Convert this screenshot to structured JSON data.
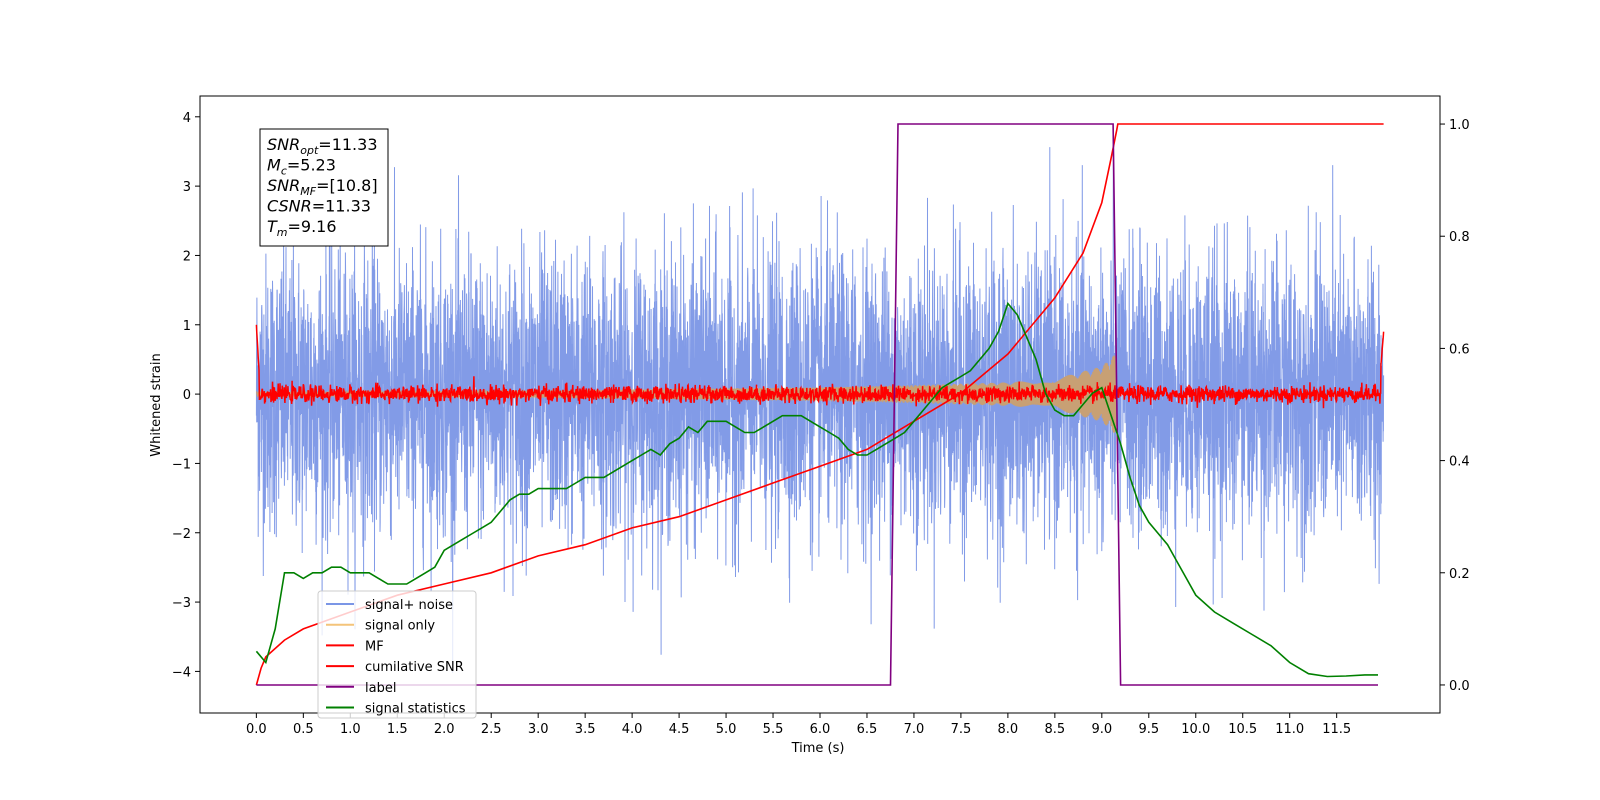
{
  "chart_data": {
    "type": "line",
    "xlabel": "Time (s)",
    "ylabel": "Whitened strain",
    "xlim": [
      -0.6,
      12.6
    ],
    "ylim": [
      -4.6,
      4.3
    ],
    "y2lim": [
      -0.05,
      1.05
    ],
    "xticks": [
      "0.0",
      "0.5",
      "1.0",
      "1.5",
      "2.0",
      "2.5",
      "3.0",
      "3.5",
      "4.0",
      "4.5",
      "5.0",
      "5.5",
      "6.0",
      "6.5",
      "7.0",
      "7.5",
      "8.0",
      "8.5",
      "9.0",
      "9.5",
      "10.0",
      "10.5",
      "11.0",
      "11.5"
    ],
    "yticks": [
      "4",
      "3",
      "2",
      "1",
      "0",
      "−1",
      "−2",
      "−3",
      "−4"
    ],
    "y2ticks": [
      "1.0",
      "0.8",
      "0.6",
      "0.4",
      "0.2",
      "0.0"
    ],
    "annotation": [
      {
        "base": "SNR",
        "sub": "opt",
        "rest": "=11.33"
      },
      {
        "base": "M",
        "sub": "c",
        "rest": "=5.23"
      },
      {
        "base": "SNR",
        "sub": "MF",
        "rest": "=[10.8]"
      },
      {
        "base": "CSNR",
        "sub": "",
        "rest": "=11.33"
      },
      {
        "base": "T",
        "sub": "m",
        "rest": "=9.16"
      }
    ],
    "legend": {
      "placement": "lower-left",
      "entries": [
        {
          "label": "signal+ noise",
          "color": "#7b96e6"
        },
        {
          "label": "signal only",
          "color": "#f4c47a"
        },
        {
          "label": "MF",
          "color": "#ff0000"
        },
        {
          "label": "cumilative SNR",
          "color": "#ff0000"
        },
        {
          "label": "label",
          "color": "#800080"
        },
        {
          "label": "signal statistics",
          "color": "#008000"
        }
      ]
    },
    "series": [
      {
        "name": "signal+ noise",
        "axis": "left",
        "style": "noise",
        "color": "#7b96e6",
        "x_range": [
          0.0,
          12.0
        ],
        "std": 1.0,
        "max": 3.88,
        "min": -4.1
      },
      {
        "name": "signal only",
        "axis": "left",
        "style": "chirp-envelope",
        "color": "#c8a074",
        "x_range": [
          0.0,
          9.16
        ],
        "amplitude_points": {
          "x": [
            0.0,
            3.0,
            6.0,
            7.0,
            8.0,
            8.5,
            9.0,
            9.16
          ],
          "y": [
            0.03,
            0.05,
            0.1,
            0.13,
            0.17,
            0.22,
            0.4,
            0.6
          ]
        }
      },
      {
        "name": "MF",
        "axis": "left",
        "style": "noise",
        "color": "#ff0000",
        "x_range": [
          0.0,
          12.0
        ],
        "std": 0.06,
        "edge_x": [
          0.0,
          0.03,
          11.97,
          12.0
        ],
        "edge_y": [
          1.0,
          0.3,
          0.4,
          0.9
        ]
      },
      {
        "name": "cumilative SNR",
        "axis": "right",
        "color": "#ff0000",
        "x": [
          0.0,
          0.05,
          0.1,
          0.3,
          0.5,
          1.0,
          1.5,
          2.0,
          2.5,
          3.0,
          3.5,
          4.0,
          4.5,
          5.0,
          5.5,
          6.0,
          6.5,
          7.0,
          7.5,
          8.0,
          8.5,
          8.8,
          9.0,
          9.1,
          9.16,
          9.17,
          12.0
        ],
        "y": [
          0.0,
          0.03,
          0.05,
          0.08,
          0.1,
          0.13,
          0.16,
          0.18,
          0.2,
          0.23,
          0.25,
          0.28,
          0.3,
          0.33,
          0.36,
          0.39,
          0.42,
          0.47,
          0.52,
          0.59,
          0.69,
          0.77,
          0.86,
          0.94,
          0.99,
          1.0,
          1.0
        ]
      },
      {
        "name": "label",
        "axis": "right",
        "color": "#800080",
        "x": [
          0.0,
          6.75,
          6.83,
          9.12,
          9.2,
          11.94
        ],
        "y": [
          0.0,
          0.0,
          1.0,
          1.0,
          0.0,
          0.0
        ]
      },
      {
        "name": "signal statistics",
        "axis": "right",
        "color": "#008000",
        "x": [
          0.0,
          0.1,
          0.2,
          0.3,
          0.4,
          0.5,
          0.6,
          0.7,
          0.8,
          0.9,
          1.0,
          1.1,
          1.2,
          1.3,
          1.4,
          1.5,
          1.6,
          1.7,
          1.8,
          1.9,
          2.0,
          2.1,
          2.2,
          2.3,
          2.4,
          2.5,
          2.6,
          2.7,
          2.8,
          2.9,
          3.0,
          3.1,
          3.2,
          3.3,
          3.4,
          3.5,
          3.6,
          3.7,
          3.8,
          3.9,
          4.0,
          4.1,
          4.2,
          4.3,
          4.4,
          4.5,
          4.6,
          4.7,
          4.8,
          4.9,
          5.0,
          5.1,
          5.2,
          5.3,
          5.4,
          5.5,
          5.6,
          5.7,
          5.8,
          5.9,
          6.0,
          6.1,
          6.2,
          6.3,
          6.4,
          6.5,
          6.6,
          6.7,
          6.8,
          6.9,
          7.0,
          7.1,
          7.2,
          7.3,
          7.4,
          7.5,
          7.6,
          7.7,
          7.8,
          7.9,
          8.0,
          8.1,
          8.2,
          8.3,
          8.4,
          8.5,
          8.6,
          8.7,
          8.8,
          8.9,
          9.0,
          9.1,
          9.2,
          9.3,
          9.4,
          9.5,
          9.6,
          9.7,
          9.8,
          9.9,
          10.0,
          10.2,
          10.4,
          10.6,
          10.8,
          11.0,
          11.2,
          11.4,
          11.6,
          11.8,
          11.94
        ],
        "y": [
          0.06,
          0.04,
          0.1,
          0.2,
          0.2,
          0.19,
          0.2,
          0.2,
          0.21,
          0.21,
          0.2,
          0.2,
          0.2,
          0.19,
          0.18,
          0.18,
          0.18,
          0.19,
          0.2,
          0.21,
          0.24,
          0.25,
          0.26,
          0.27,
          0.28,
          0.29,
          0.31,
          0.33,
          0.34,
          0.34,
          0.35,
          0.35,
          0.35,
          0.35,
          0.36,
          0.37,
          0.37,
          0.37,
          0.38,
          0.39,
          0.4,
          0.41,
          0.42,
          0.41,
          0.43,
          0.44,
          0.46,
          0.45,
          0.47,
          0.47,
          0.47,
          0.46,
          0.45,
          0.45,
          0.46,
          0.47,
          0.48,
          0.48,
          0.48,
          0.47,
          0.46,
          0.45,
          0.44,
          0.42,
          0.41,
          0.41,
          0.42,
          0.43,
          0.44,
          0.45,
          0.47,
          0.49,
          0.51,
          0.53,
          0.54,
          0.55,
          0.56,
          0.58,
          0.6,
          0.63,
          0.68,
          0.66,
          0.62,
          0.58,
          0.52,
          0.49,
          0.48,
          0.48,
          0.5,
          0.52,
          0.53,
          0.48,
          0.43,
          0.37,
          0.32,
          0.29,
          0.27,
          0.25,
          0.22,
          0.19,
          0.16,
          0.13,
          0.11,
          0.09,
          0.07,
          0.04,
          0.02,
          0.015,
          0.016,
          0.018,
          0.018
        ]
      }
    ]
  }
}
